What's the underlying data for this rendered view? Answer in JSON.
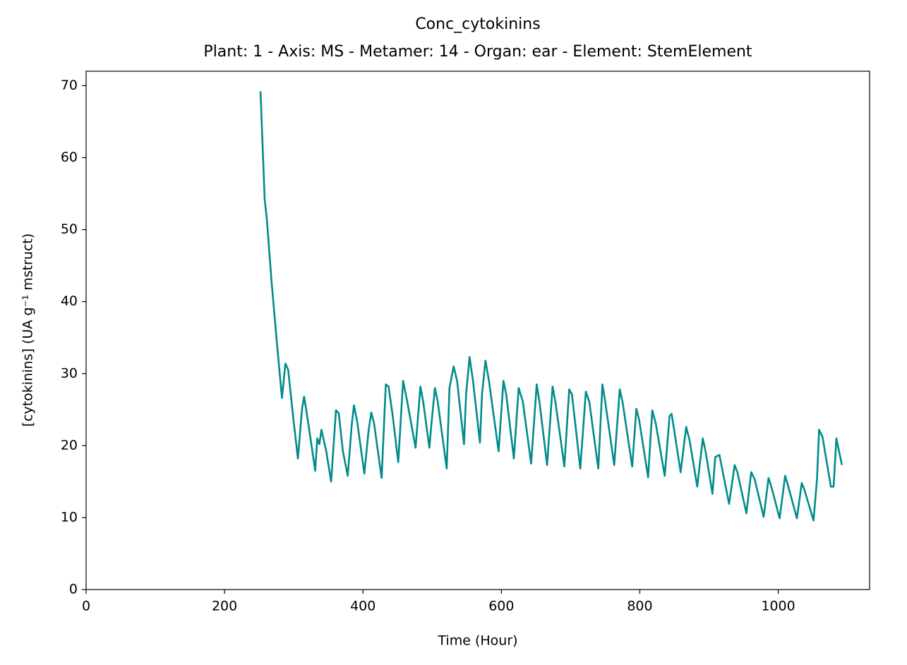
{
  "chart_data": {
    "type": "line",
    "title": "Conc_cytokinins",
    "subtitle": "Plant: 1 - Axis: MS - Metamer: 14 - Organ: ear - Element: StemElement",
    "x_label": "Time (Hour)",
    "y_label": "[cytokinins] (UA g⁻¹ mstruct)",
    "xlim": [
      0,
      1132
    ],
    "ylim": [
      0,
      72
    ],
    "xticks": [
      0,
      200,
      400,
      600,
      800,
      1000
    ],
    "yticks": [
      0,
      10,
      20,
      30,
      40,
      50,
      60,
      70
    ],
    "grid": false,
    "series": [
      {
        "name": "Conc_cytokinins",
        "color": "#008b8b",
        "x": [
          252,
          258,
          261,
          268,
          276,
          283,
          288,
          292,
          299,
          306,
          312,
          315,
          321,
          331,
          334,
          337,
          340,
          347,
          354,
          361,
          365,
          371,
          378,
          384,
          387,
          392,
          402,
          408,
          412,
          416,
          427,
          433,
          437,
          443,
          451,
          458,
          464,
          476,
          483,
          487,
          496,
          499,
          504,
          508,
          521,
          525,
          531,
          536,
          546,
          549,
          554,
          559,
          569,
          572,
          577,
          582,
          596,
          603,
          607,
          618,
          625,
          631,
          643,
          651,
          655,
          666,
          674,
          678,
          691,
          698,
          702,
          714,
          722,
          727,
          740,
          746,
          750,
          763,
          771,
          775,
          789,
          795,
          799,
          812,
          818,
          823,
          836,
          843,
          846,
          859,
          867,
          872,
          883,
          891,
          895,
          905,
          909,
          915,
          929,
          937,
          941,
          954,
          961,
          966,
          979,
          986,
          990,
          1002,
          1010,
          1014,
          1027,
          1034,
          1038,
          1051,
          1056,
          1059,
          1064,
          1076,
          1080,
          1084,
          1092
        ],
        "values": [
          69.2,
          54.2,
          51.6,
          42.7,
          33.9,
          26.6,
          31.4,
          30.5,
          24.1,
          18.2,
          25.1,
          26.8,
          23.1,
          16.5,
          21.0,
          20.2,
          22.2,
          19.2,
          15.0,
          24.9,
          24.5,
          19.2,
          15.8,
          23.1,
          25.6,
          23.1,
          16.1,
          22.0,
          24.6,
          23.1,
          15.5,
          28.5,
          28.2,
          24.1,
          17.7,
          29.0,
          26.1,
          19.7,
          28.2,
          26.1,
          19.7,
          23.1,
          28.0,
          26.1,
          16.8,
          28.0,
          31.0,
          29.0,
          20.2,
          27.1,
          32.3,
          29.0,
          20.4,
          27.1,
          31.8,
          29.0,
          19.2,
          29.0,
          27.1,
          18.2,
          28.0,
          26.1,
          17.5,
          28.5,
          26.1,
          17.3,
          28.2,
          26.1,
          17.1,
          27.8,
          27.1,
          16.8,
          27.5,
          26.1,
          16.8,
          28.5,
          26.1,
          17.3,
          27.8,
          26.1,
          17.1,
          25.1,
          23.6,
          15.6,
          24.9,
          23.1,
          15.8,
          24.1,
          24.4,
          16.3,
          22.6,
          20.7,
          14.3,
          21.0,
          19.2,
          13.3,
          18.4,
          18.7,
          11.9,
          17.3,
          16.3,
          10.6,
          16.3,
          15.3,
          10.1,
          15.5,
          14.3,
          9.9,
          15.8,
          14.5,
          9.9,
          14.8,
          13.8,
          9.6,
          15.3,
          22.2,
          21.2,
          14.3,
          14.3,
          21.0,
          17.3
        ]
      }
    ]
  }
}
